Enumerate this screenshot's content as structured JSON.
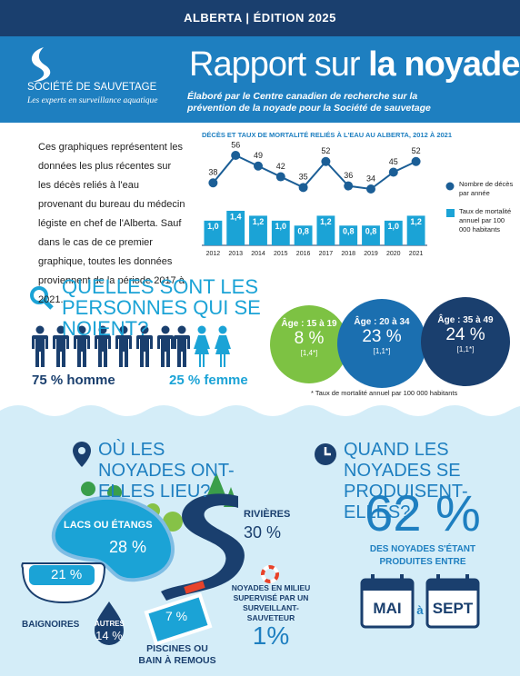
{
  "header": {
    "region": "ALBERTA",
    "edition": "| ÉDITION 2025",
    "organization": "SOCIÉTÉ DE SAUVETAGE",
    "tagline": "Les experts en surveillance aquatique",
    "title_light": "Rapport sur",
    "title_bold": "la noyade",
    "subtitle": "Élaboré par le Centre canadien de recherche sur la prévention de la noyade pour la Société de sauvetage"
  },
  "intro": "Ces graphiques représentent les données les plus récentes sur les décès reliés à l'eau provenant du bureau du médecin légiste en chef de l'Alberta. Sauf dans le cas de ce premier graphique, toutes les données proviennent de la période 2017 à 2021.",
  "chart_data": {
    "type": "combo",
    "title": "DÉCÈS ET TAUX DE MORTALITÉ RELIÉS À L'EAU AU ALBERTA, 2012 À 2021",
    "categories": [
      "2012",
      "2013",
      "2014",
      "2015",
      "2016",
      "2017",
      "2018",
      "2019",
      "2020",
      "2021"
    ],
    "series": [
      {
        "name": "Nombre de décès par année",
        "type": "line",
        "color": "#1b5e96",
        "values": [
          38,
          56,
          49,
          42,
          35,
          52,
          36,
          34,
          45,
          52
        ]
      },
      {
        "name": "Taux de mortalité annuel par 100 000 habitants",
        "type": "bar",
        "color": "#1ba3d6",
        "values": [
          1.0,
          1.4,
          1.2,
          1.0,
          0.8,
          1.2,
          0.8,
          0.8,
          1.0,
          1.2
        ],
        "value_labels": [
          "1,0",
          "1,4",
          "1,2",
          "1,0",
          "0,8",
          "1,2",
          "0,8",
          "0,8",
          "1,0",
          "1,2"
        ]
      }
    ]
  },
  "who": {
    "heading": "QUELLES SONT LES PERSONNES QUI SE NOIENT?",
    "male": "75 % homme",
    "female": "25 % femme",
    "age_groups": [
      {
        "label": "Âge : 15 à 19",
        "percent": "8 %",
        "rate": "[1,4*]"
      },
      {
        "label": "Âge : 20 à 34",
        "percent": "23 %",
        "rate": "[1,1*]"
      },
      {
        "label": "Âge : 35 à 49",
        "percent": "24 %",
        "rate": "[1,1*]"
      }
    ],
    "footnote": "* Taux de mortalité annuel par 100 000 habitants"
  },
  "where": {
    "heading": "OÙ LES NOYADES ONT-ELLES LIEU?",
    "places": [
      {
        "label": "LACS OU ÉTANGS",
        "percent": "28 %"
      },
      {
        "label": "RIVIÈRES",
        "percent": "30 %"
      },
      {
        "label": "BAIGNOIRES",
        "percent": "21 %"
      },
      {
        "label": "AUTRES",
        "percent": "14 %"
      },
      {
        "label": "PISCINES OU BAIN À REMOUS",
        "percent": "7 %"
      }
    ],
    "supervised": {
      "label": "NOYADES EN MILIEU SUPERVISÉ PAR UN SURVEILLANT-SAUVETEUR",
      "percent": "1%"
    }
  },
  "when": {
    "heading": "QUAND LES NOYADES SE PRODUISENT-ELLES?",
    "percent": "62 %",
    "text": "DES NOYADES S'ÉTANT PRODUITES ENTRE",
    "from": "MAI",
    "connector": "à",
    "to": "SEPT"
  }
}
